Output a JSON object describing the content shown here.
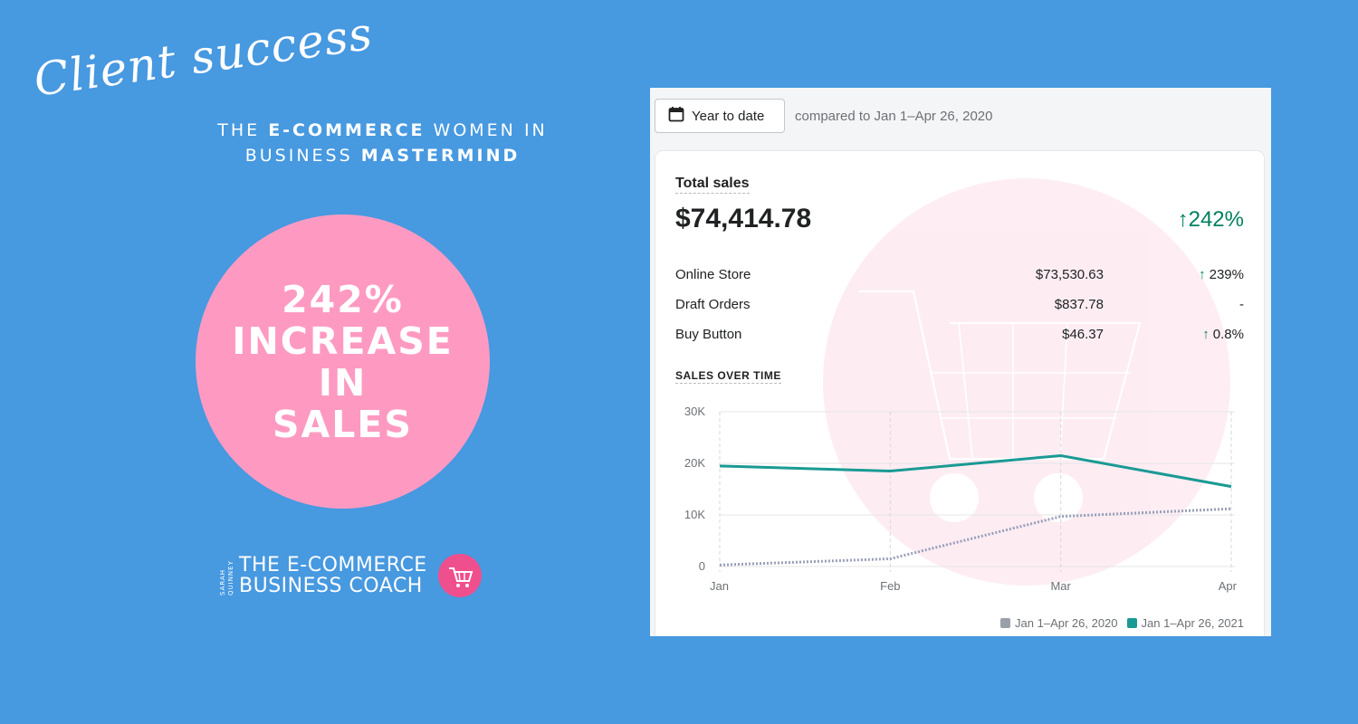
{
  "page": {
    "script_title": "Client success",
    "heading": {
      "line1_pre": "THE",
      "line1_bold": "E-COMMERCE",
      "line1_post": "WOMEN IN",
      "line2_pre": "BUSINESS",
      "line2_bold": "MASTERMIND"
    },
    "stat_lines": [
      "242%",
      "INCREASE",
      "IN",
      "SALES"
    ],
    "logo": {
      "small_top": "SARAH",
      "small_bottom": "QUINNEY",
      "line1": "THE E-COMMERCE",
      "line2": "BUSINESS COACH"
    },
    "colors": {
      "background": "#4799e0",
      "pink": "#fe9ac2",
      "accent_green": "#008060",
      "teal": "#1a9a94"
    }
  },
  "dashboard": {
    "date_button": {
      "label": "Year to date",
      "icon": "calendar-icon"
    },
    "compare_text": "compared to Jan 1–Apr 26, 2020",
    "total_sales": {
      "label": "Total sales",
      "value": "$74,414.78",
      "change": "↑242%"
    },
    "channels": [
      {
        "name": "Online Store",
        "value": "$73,530.63",
        "change": "239%",
        "arrow": "↑"
      },
      {
        "name": "Draft Orders",
        "value": "$837.78",
        "change": "-",
        "arrow": ""
      },
      {
        "name": "Buy Button",
        "value": "$46.37",
        "change": "0.8%",
        "arrow": "↑"
      }
    ],
    "sales_over_time_label": "SALES OVER TIME"
  },
  "chart_data": {
    "type": "line",
    "categories": [
      "Jan",
      "Feb",
      "Mar",
      "Apr"
    ],
    "ylim": [
      0,
      30000
    ],
    "yticks": [
      "0",
      "10K",
      "20K",
      "30K"
    ],
    "series": [
      {
        "name": "Jan 1–Apr 26, 2021",
        "values": [
          19500,
          18500,
          21500,
          15500
        ],
        "color": "#1a9a94",
        "style": "solid"
      },
      {
        "name": "Jan 1–Apr 26, 2020",
        "values": [
          300,
          1500,
          9700,
          11200
        ],
        "color": "#9a9fb8",
        "style": "dotted"
      }
    ],
    "legend": [
      {
        "label": "Jan 1–Apr 26, 2020",
        "color": "#9aa0aa"
      },
      {
        "label": "Jan 1–Apr 26, 2021",
        "color": "#1a9a94"
      }
    ],
    "grid": true
  }
}
